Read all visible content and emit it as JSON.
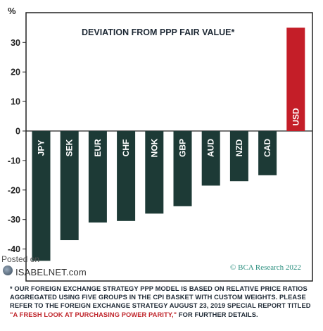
{
  "chart_data": {
    "type": "bar",
    "title": "DEVIATION FROM PPP FAIR VALUE*",
    "ylabel": "%",
    "categories": [
      "JPY",
      "SEK",
      "EUR",
      "CHF",
      "NOK",
      "GBP",
      "AUD",
      "NZD",
      "CAD",
      "USD"
    ],
    "values": [
      -44,
      -37,
      -31,
      -30.5,
      -28,
      -25.5,
      -18.5,
      -17,
      -15,
      35
    ],
    "ylim": [
      -45,
      38
    ],
    "yticks": [
      -40,
      -30,
      -20,
      -10,
      0,
      10,
      20,
      30
    ],
    "grid": false,
    "colors": {
      "negative": "#1d3a36",
      "positive": "#c41e28"
    }
  },
  "credit": "© BCA Research 2022",
  "watermark": {
    "line1": "Posted on",
    "line2": "ISABELNET.com"
  },
  "footnote": {
    "text_before": "* OUR FOREIGN EXCHANGE STRATEGY PPP MODEL IS BASED ON RELATIVE PRICE RATIOS AGGREGATED USING FIVE GROUPS IN THE CPI BASKET WITH CUSTOM WEIGHTS. PLEASE REFER TO THE FOREIGN EXCHANGE STRATEGY AUGUST 23, 2019 SPECIAL REPORT TITLED ",
    "link_text": "\"A FRESH LOOK AT PURCHASING POWER PARITY,\"",
    "text_after": " FOR FURTHER DETAILS."
  }
}
